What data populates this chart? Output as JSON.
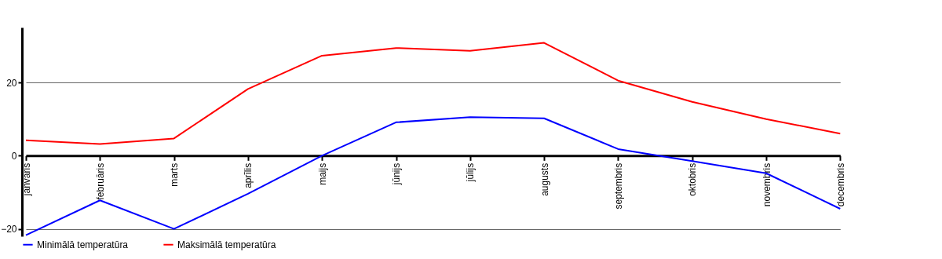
{
  "chart_data": {
    "type": "line",
    "categories": [
      "janvāris",
      "februāris",
      "marts",
      "aprīlis",
      "maijs",
      "jūnijs",
      "jūlijs",
      "augusts",
      "septembris",
      "oktobris",
      "novembris",
      "decembris"
    ],
    "series": [
      {
        "name": "Minimālā temperatūra",
        "color": "#0000ff",
        "values": [
          -21.7,
          -12.2,
          -20,
          -10.4,
          0,
          9.1,
          10.5,
          10.2,
          1.8,
          -1.5,
          -4.8,
          -14.5
        ]
      },
      {
        "name": "Maksimālā temperatūra",
        "color": "#ff0000",
        "values": [
          4.2,
          3.2,
          4.7,
          18.2,
          27.3,
          29.4,
          28.6,
          30.8,
          20.5,
          14.7,
          10.0,
          6.0
        ]
      }
    ],
    "ylim": [
      -22,
      35
    ],
    "yticks": [
      -20,
      0,
      20
    ],
    "grid": "y",
    "legend": "bottom left",
    "marker": "none",
    "line_style": "solid"
  }
}
